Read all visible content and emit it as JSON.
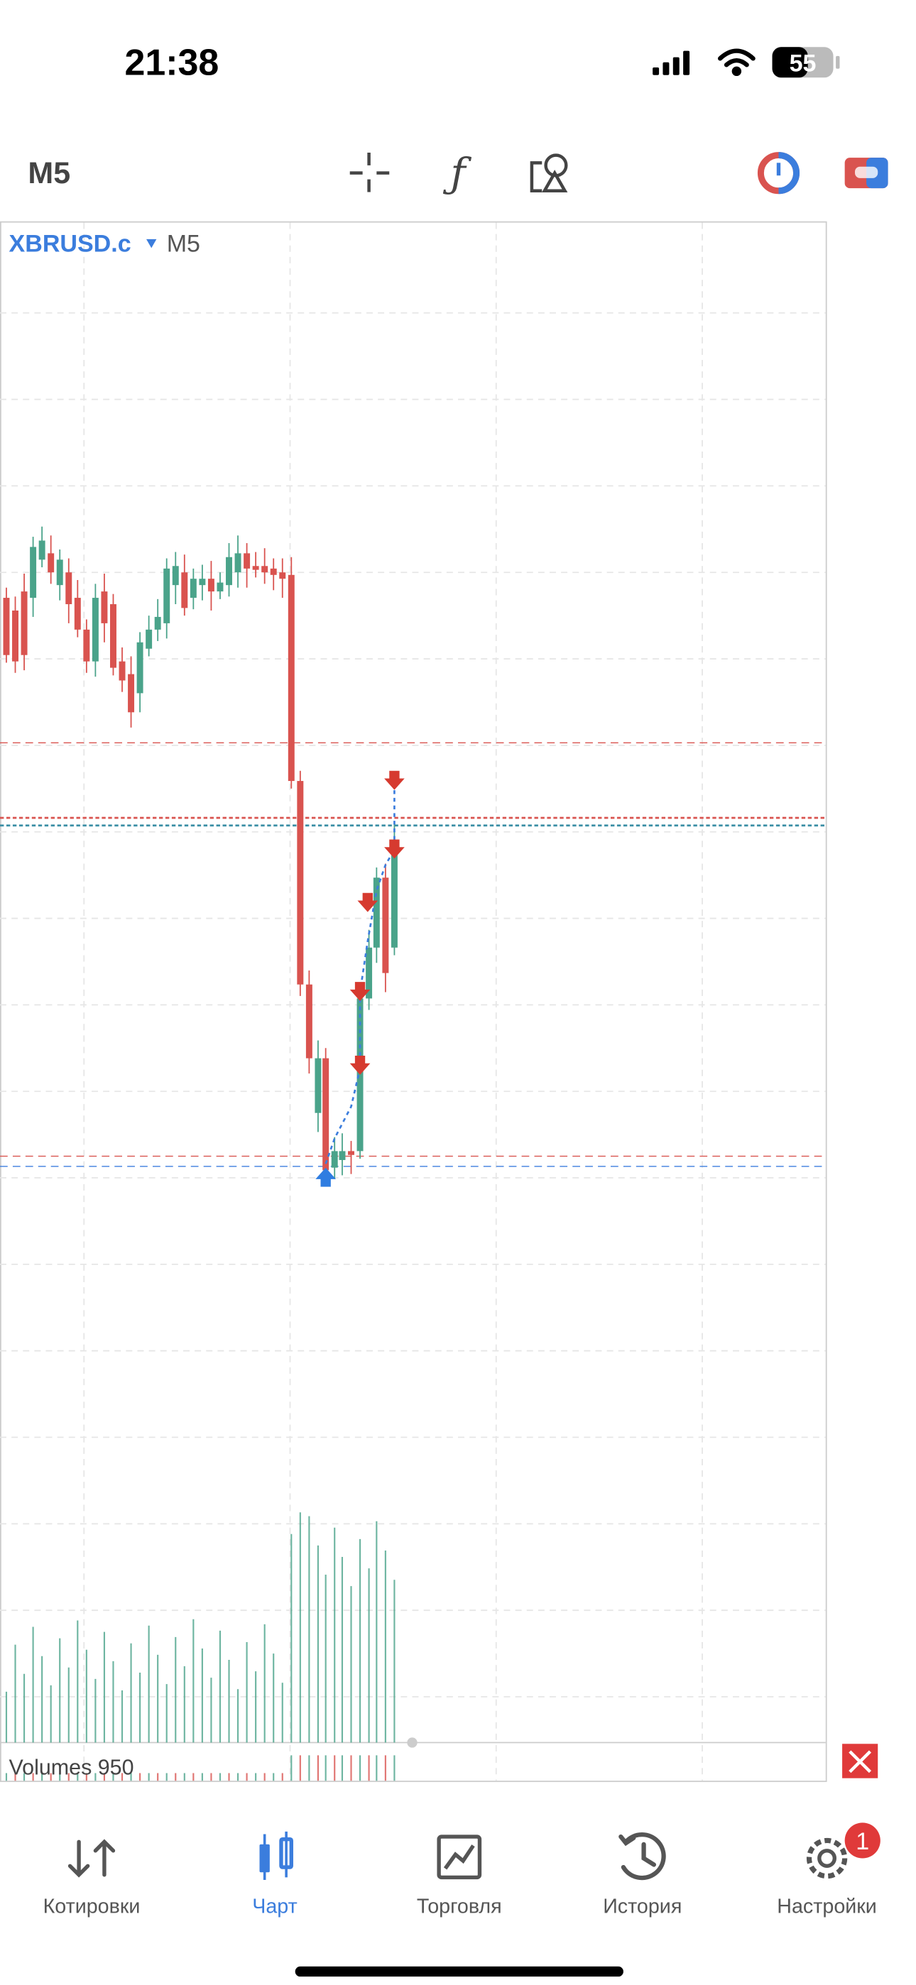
{
  "status_bar": {
    "time": "21:38",
    "battery": "55"
  },
  "toolbar": {
    "timeframe": "M5"
  },
  "chart": {
    "symbol": "XBRUSD.c",
    "timeframe": "M5",
    "volumes_label": "Volumes 950"
  },
  "nav": {
    "items": [
      {
        "label": "Котировки"
      },
      {
        "label": "Чарт"
      },
      {
        "label": "Торговля"
      },
      {
        "label": "История"
      },
      {
        "label": "Настройки"
      }
    ],
    "badge": "1"
  }
}
